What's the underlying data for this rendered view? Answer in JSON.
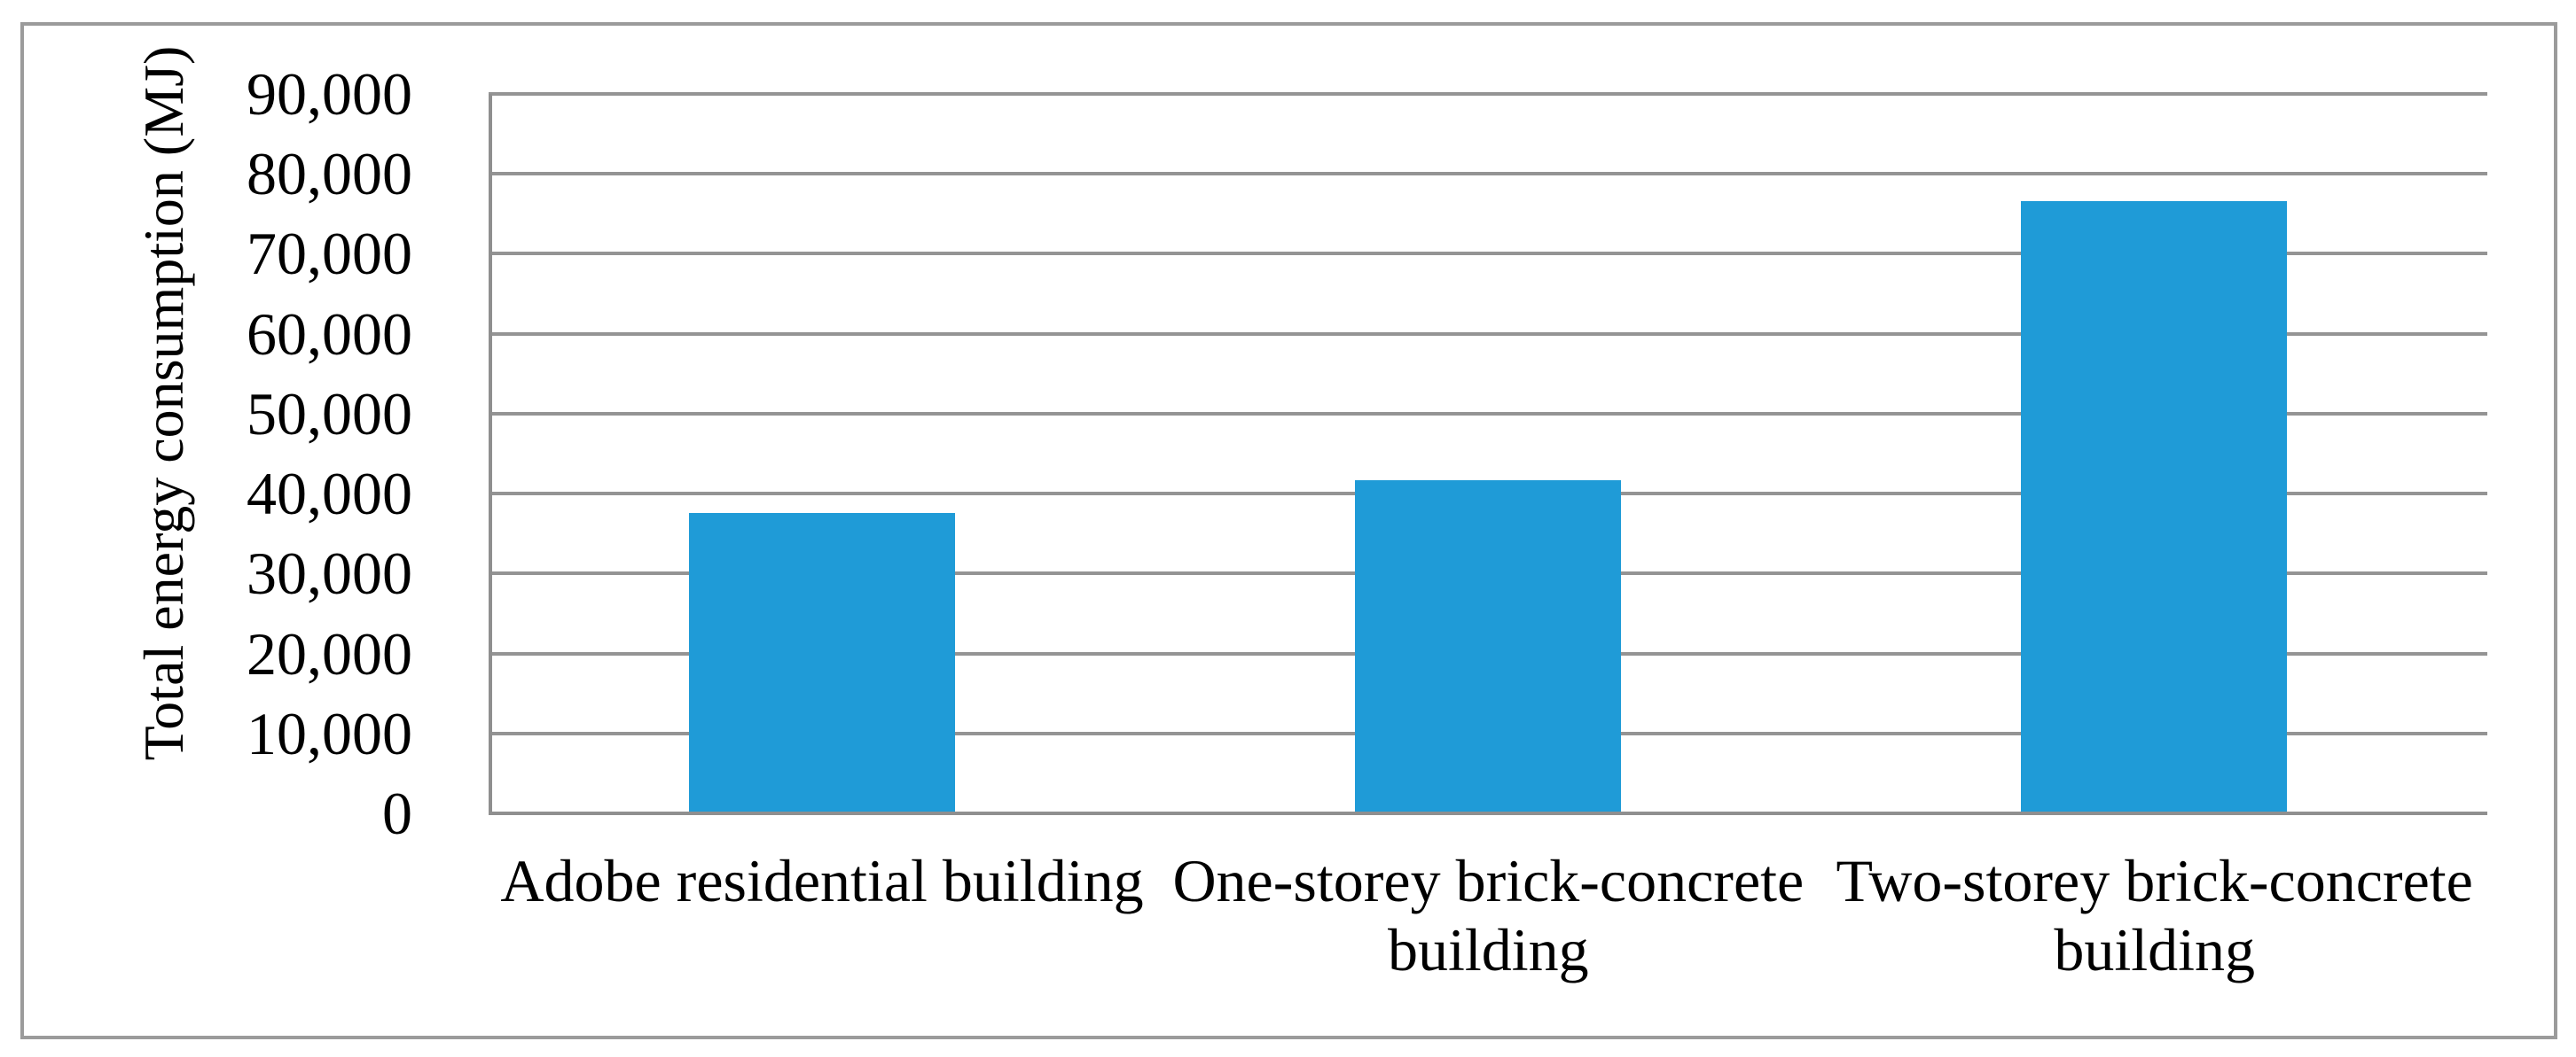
{
  "chart_data": {
    "type": "bar",
    "title": "",
    "categories": [
      "Adobe residential building",
      "One-storey brick-concrete building",
      "Two-storey brick-concrete building"
    ],
    "category_display_lines": [
      [
        "Adobe residential building"
      ],
      [
        "One-storey brick-concrete",
        "building"
      ],
      [
        "Two-storey brick-concrete",
        "building"
      ]
    ],
    "values": [
      37400,
      41500,
      76400
    ],
    "xlabel": "",
    "ylabel": "Total energy consumption (MJ)",
    "ylim": [
      0,
      90000
    ],
    "ytick_step": 10000,
    "ytick_labels": [
      "0",
      "10,000",
      "20,000",
      "30,000",
      "40,000",
      "50,000",
      "60,000",
      "70,000",
      "80,000",
      "90,000"
    ],
    "grid": true,
    "legend": false,
    "colors": {
      "bar": "#1F9BD7",
      "gridline": "#949494",
      "axis_line": "#8F8F8F",
      "figure_border": "#9B9B9B",
      "text": "#000000",
      "background": "#FFFFFF"
    }
  }
}
